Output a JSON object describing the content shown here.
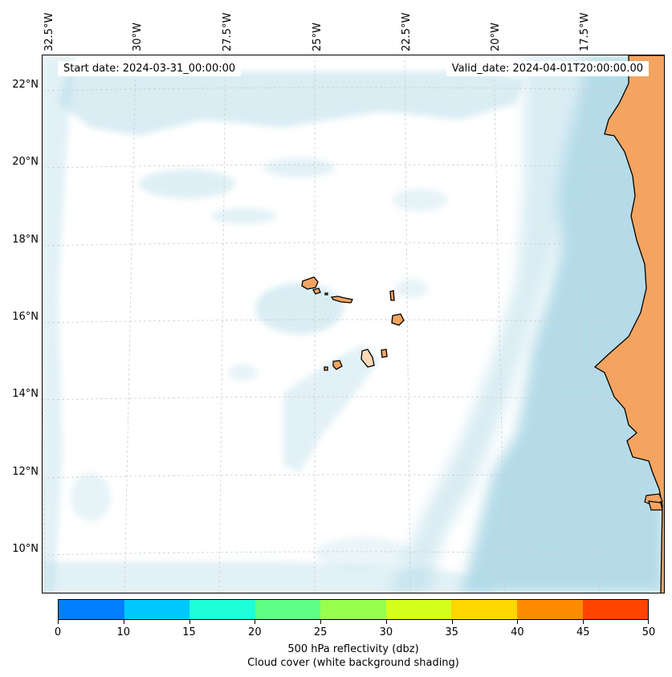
{
  "map": {
    "start_date": "Start date: 2024-03-31_00:00:00",
    "valid_date": "Valid_date: 2024-04-01T20:00:00.00",
    "lon_labels": [
      "32.5°W",
      "30°W",
      "27.5°W",
      "25°W",
      "22.5°W",
      "20°W",
      "17.5°W"
    ],
    "lat_labels": [
      "22°N",
      "20°N",
      "18°N",
      "16°N",
      "14°N",
      "12°N",
      "10°N"
    ],
    "colors": {
      "ocean_cloud": "#add8e6",
      "land": "#f4a460",
      "coast": "#000000",
      "grid": "#cccccc"
    }
  },
  "colorbar": {
    "ticks": [
      "0",
      "10",
      "15",
      "20",
      "25",
      "30",
      "35",
      "40",
      "45",
      "50"
    ],
    "colors": [
      "#007fff",
      "#00c8ff",
      "#1effd9",
      "#5fff86",
      "#98ff4d",
      "#d4ff1c",
      "#ffd700",
      "#ff8c00",
      "#ff4500"
    ],
    "label": "500 hPa reflectivity (dbz)",
    "sublabel": "Cloud cover (white background shading)"
  }
}
